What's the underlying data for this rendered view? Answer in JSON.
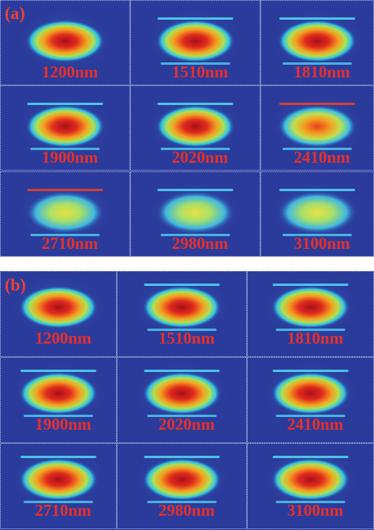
{
  "panel_a": {
    "label": "(a)",
    "cells": [
      "1200nm",
      "1510nm",
      "1810nm",
      "1900nm",
      "2020nm",
      "2410nm",
      "2710nm",
      "2980nm",
      "3100nm"
    ]
  },
  "panel_b": {
    "label": "(b)",
    "cells": [
      "1200nm",
      "1510nm",
      "1810nm",
      "1900nm",
      "2020nm",
      "2410nm",
      "2710nm",
      "2980nm",
      "3100nm"
    ]
  }
}
